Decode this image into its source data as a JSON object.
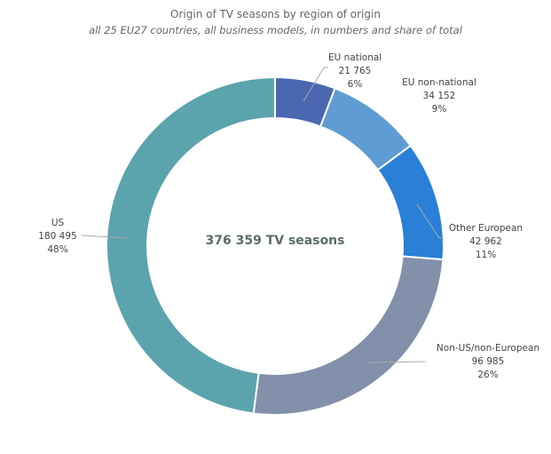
{
  "chart_data": {
    "type": "pie",
    "title": "Origin of TV seasons by region of origin",
    "subtitle": "all 25 EU27 countries, all business models, in numbers and share of total",
    "center_label": "376 359 TV seasons",
    "slices": [
      {
        "name": "EU national",
        "value": 21765,
        "value_label": "21 765",
        "share": "6%",
        "color": "#4a67b0"
      },
      {
        "name": "EU non-national",
        "value": 34152,
        "value_label": "34 152",
        "share": "9%",
        "color": "#5f9cd3"
      },
      {
        "name": "Other European",
        "value": 42962,
        "value_label": "42 962",
        "share": "11%",
        "color": "#2a7fd6"
      },
      {
        "name": "Non-US/non-European",
        "value": 96985,
        "value_label": "96 985",
        "share": "26%",
        "color": "#8290aa"
      },
      {
        "name": "US",
        "value": 180495,
        "value_label": "180 495",
        "share": "48%",
        "color": "#5ba3ad"
      }
    ]
  }
}
